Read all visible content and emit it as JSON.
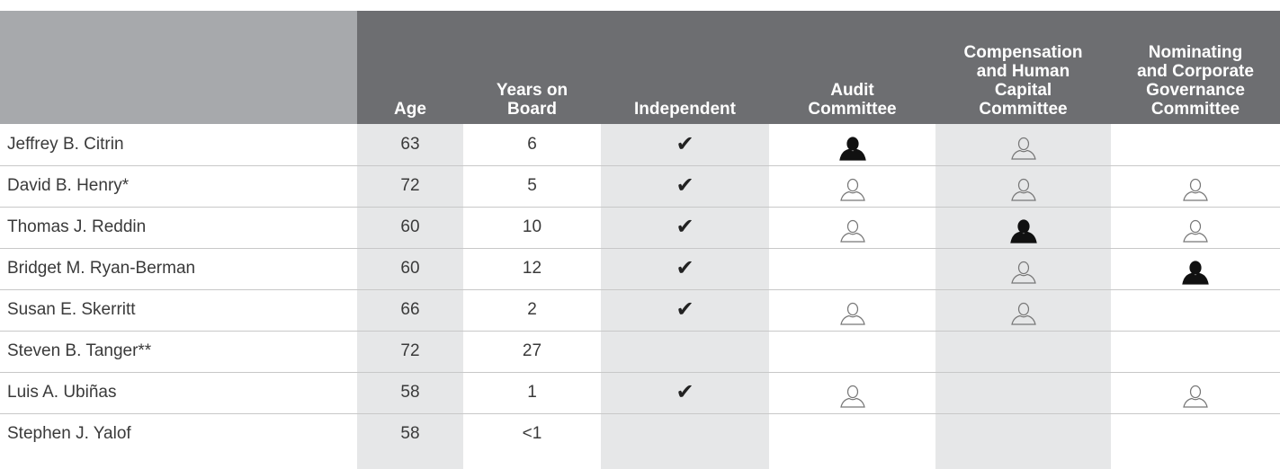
{
  "header": {
    "columns": [
      [
        "Age"
      ],
      [
        "Years on",
        "Board"
      ],
      [
        "Independent"
      ],
      [
        "Audit",
        "Committee"
      ],
      [
        "Compensation",
        "and Human",
        "Capital",
        "Committee"
      ],
      [
        "Nominating",
        "and Corporate",
        "Governance",
        "Committee"
      ]
    ]
  },
  "table": {
    "rows": [
      [
        "Jeffrey B. Citrin",
        63,
        6,
        "✔"
      ],
      [
        "David B. Henry*",
        72,
        5,
        "✔"
      ],
      [
        "Thomas J. Reddin",
        60,
        10,
        "✔"
      ],
      [
        "Bridget M. Ryan-Berman",
        60,
        12,
        "✔"
      ],
      [
        "Susan E. Skerritt",
        66,
        2,
        "✔"
      ],
      [
        "Steven B. Tanger**",
        72,
        27,
        null
      ],
      [
        "Luis A. Ubiñas",
        58,
        1,
        "✔"
      ],
      [
        "Stephen J. Yalof",
        58,
        "<1",
        null
      ]
    ]
  }
}
